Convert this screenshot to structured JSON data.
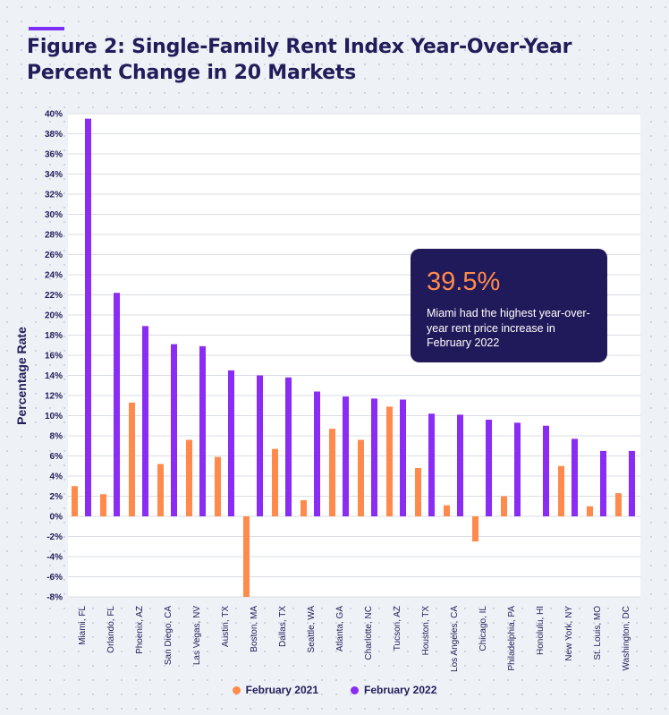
{
  "title": "Figure 2: Single-Family Rent Index Year-Over-Year Percent Change in 20 Markets",
  "callout": {
    "value": "39.5%",
    "text": "Miami had the highest year-over-year rent price increase in February 2022"
  },
  "colors": {
    "feb2021": "#ff8a4c",
    "feb2022": "#8b2cf5",
    "accent": "#7b2ff7",
    "title": "#231c5a"
  },
  "chart_data": {
    "type": "bar",
    "ylabel": "Percentage Rate",
    "ylim": [
      -8,
      40
    ],
    "ytick_step": 2,
    "ytick_suffix": "%",
    "grid": true,
    "legend_position": "bottom",
    "categories": [
      "Miami, FL",
      "Orlando, FL",
      "Phoenix, AZ",
      "San Diego, CA",
      "Las Vegas, NV",
      "Austin, TX",
      "Boston, MA",
      "Dallas, TX",
      "Seattle, WA",
      "Atlanta, GA",
      "Charlotte, NC",
      "Tucson, AZ",
      "Houston, TX",
      "Los Angeles, CA",
      "Chicago, IL",
      "Philadelphia, PA",
      "Honolulu, HI",
      "New York, NY",
      "St. Louis, MO",
      "Washington, DC"
    ],
    "series": [
      {
        "name": "February 2021",
        "values": [
          3.0,
          2.2,
          11.3,
          5.2,
          7.6,
          5.9,
          -8.0,
          6.7,
          1.6,
          8.7,
          7.6,
          10.9,
          4.8,
          1.1,
          -2.5,
          2.0,
          0.0,
          5.0,
          1.0,
          2.3
        ]
      },
      {
        "name": "February 2022",
        "values": [
          39.5,
          22.2,
          18.9,
          17.1,
          16.9,
          14.5,
          14.0,
          13.8,
          12.4,
          11.9,
          11.7,
          11.6,
          10.2,
          10.1,
          9.6,
          9.3,
          9.0,
          7.7,
          6.5,
          6.5
        ]
      }
    ]
  }
}
